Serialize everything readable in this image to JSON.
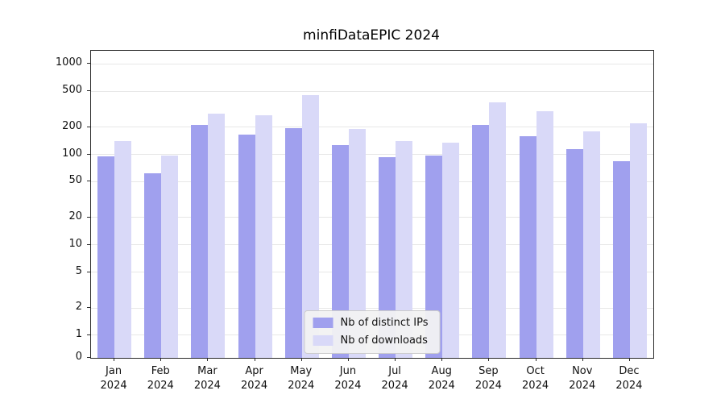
{
  "chart_data": {
    "type": "bar",
    "title": "minfiDataEPIC 2024",
    "categories": [
      "Jan",
      "Feb",
      "Mar",
      "Apr",
      "May",
      "Jun",
      "Jul",
      "Aug",
      "Sep",
      "Oct",
      "Nov",
      "Dec"
    ],
    "year": "2024",
    "series": [
      {
        "name": "Nb of distinct IPs",
        "color": "#a0a0ee",
        "values": [
          95,
          62,
          210,
          165,
          195,
          128,
          93,
          98,
          210,
          160,
          115,
          85
        ]
      },
      {
        "name": "Nb of downloads",
        "color": "#d9d9f8",
        "values": [
          140,
          97,
          280,
          270,
          450,
          190,
          140,
          135,
          380,
          300,
          180,
          220
        ]
      }
    ],
    "yticks": [
      0,
      1,
      2,
      5,
      10,
      20,
      50,
      100,
      200,
      500,
      1000
    ],
    "scale": "log",
    "ylim": [
      0,
      1400
    ],
    "grid": true,
    "legend_position": "lower center"
  }
}
